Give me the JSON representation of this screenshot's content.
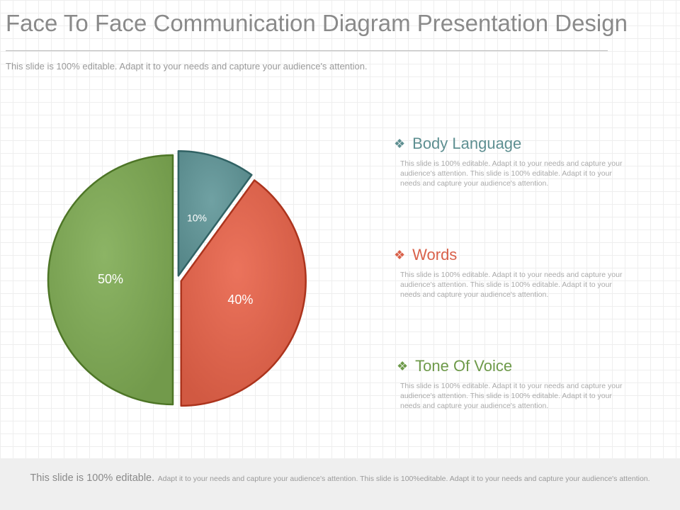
{
  "slide": {
    "title": "Face To Face Communication Diagram Presentation Design",
    "subtitle": "This slide is 100% editable. Adapt it to your needs and capture your audience's attention."
  },
  "chart_data": {
    "type": "pie",
    "slices": [
      {
        "label": "Body Language",
        "value": 10,
        "value_label": "10%",
        "color": "#5e8f91"
      },
      {
        "label": "Words",
        "value": 40,
        "value_label": "40%",
        "color": "#d9614a"
      },
      {
        "label": "Tone Of Voice",
        "value": 50,
        "value_label": "50%",
        "color": "#7aa253"
      }
    ]
  },
  "legend": {
    "bullet": "❖",
    "items": [
      {
        "label": "Body Language",
        "color": "#5e8f91",
        "description": "This slide is 100% editable. Adapt it to your needs and capture your audience's attention. This slide is 100% editable. Adapt it to your needs and capture your audience's attention."
      },
      {
        "label": "Words",
        "color": "#d9614a",
        "description": "This slide is 100% editable. Adapt it to your needs and capture your audience's attention. This slide is 100% editable. Adapt it to your needs and capture your audience's attention."
      },
      {
        "label": "Tone Of Voice",
        "color": "#6e9a4a",
        "description": "This slide is 100% editable. Adapt it to your needs and capture your audience's attention. This slide is 100% editable. Adapt it to your needs and capture your audience's attention."
      }
    ]
  },
  "footer": {
    "lead": "This slide is 100% editable.",
    "rest": "Adapt it to your needs and capture your audience's attention. This slide is 100%editable. Adapt it to your needs and capture your audience's attention."
  }
}
